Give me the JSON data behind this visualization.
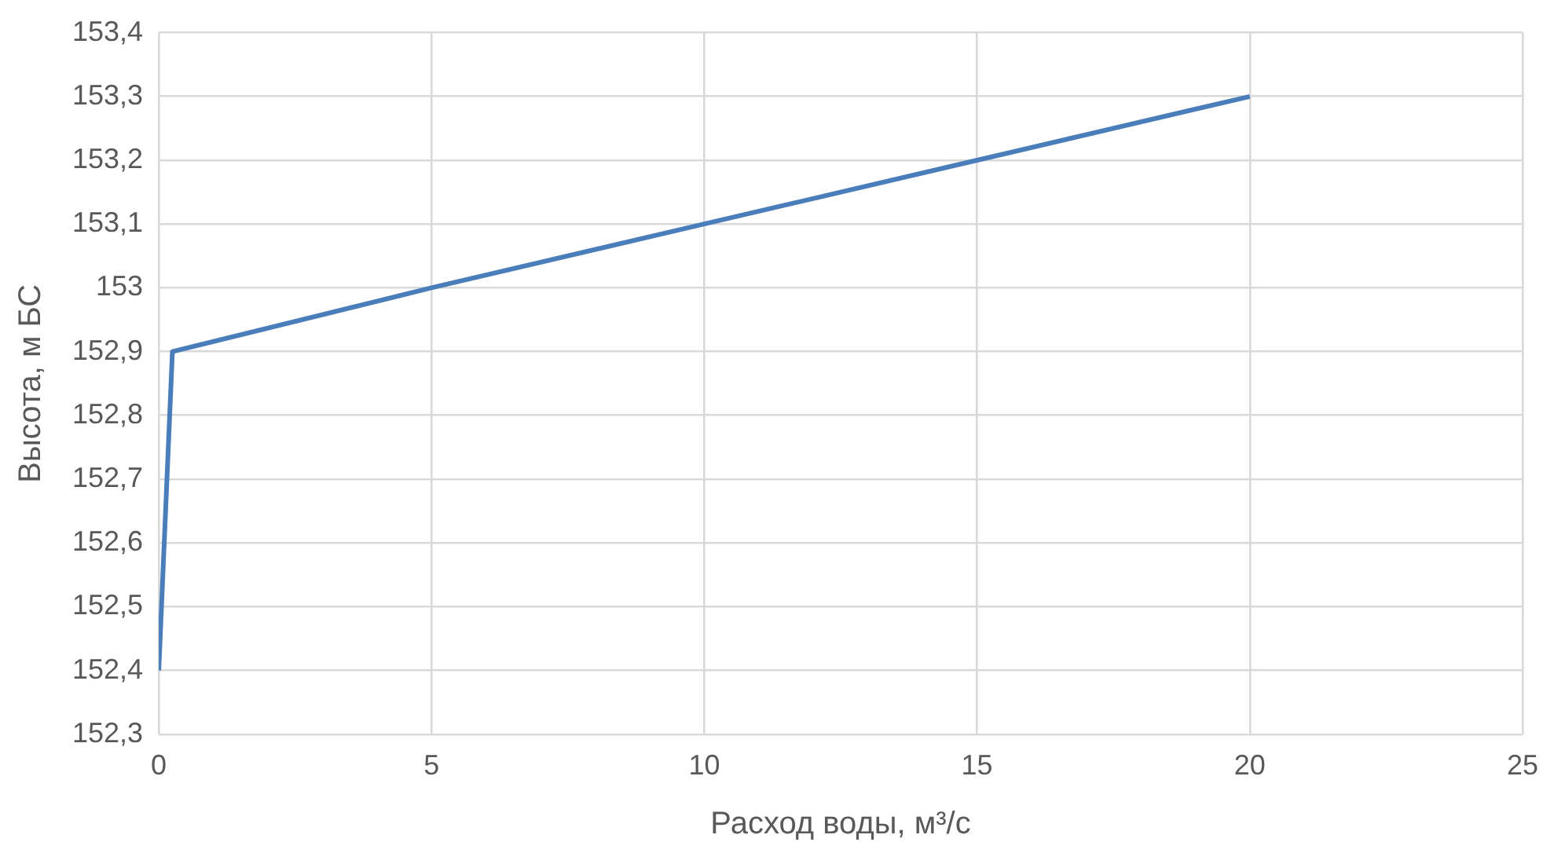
{
  "chart_data": {
    "type": "line",
    "xlabel": "Расход воды, м³/с",
    "ylabel": "Высота, м БС",
    "series": [
      {
        "color": "#4a7ebb",
        "x": [
          0,
          0.25,
          5,
          10,
          15,
          20
        ],
        "values": [
          152.4,
          152.9,
          153.0,
          153.1,
          153.2,
          153.3
        ]
      }
    ],
    "xlim": [
      0,
      25
    ],
    "xticks": [
      0,
      5,
      10,
      15,
      20,
      25
    ],
    "ylim": [
      152.3,
      153.4
    ],
    "yticks": [
      {
        "value": 152.3,
        "label": "152,3"
      },
      {
        "value": 152.4,
        "label": "152,4"
      },
      {
        "value": 152.5,
        "label": "152,5"
      },
      {
        "value": 152.6,
        "label": "152,6"
      },
      {
        "value": 152.7,
        "label": "152,7"
      },
      {
        "value": 152.8,
        "label": "152,8"
      },
      {
        "value": 152.9,
        "label": "152,9"
      },
      153,
      {
        "value": 153.1,
        "label": "153,1"
      },
      {
        "value": 153.2,
        "label": "153,2"
      },
      {
        "value": 153.3,
        "label": "153,3"
      },
      {
        "value": 153.4,
        "label": "153,4"
      }
    ],
    "grid": true,
    "legend": false,
    "marker": "none",
    "line_style": "solid"
  }
}
